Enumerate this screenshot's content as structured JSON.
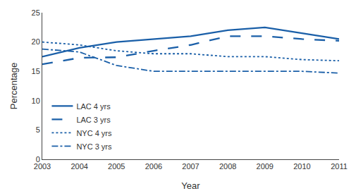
{
  "chart_data": {
    "type": "line",
    "xlabel": "Year",
    "ylabel": "Percentage",
    "x": [
      2003,
      2004,
      2005,
      2006,
      2007,
      2008,
      2009,
      2010,
      2011
    ],
    "series": [
      {
        "name": "LAC 4 yrs",
        "color": "#1a5fa8",
        "line_style": "solid",
        "values": [
          17.5,
          19.0,
          20.0,
          20.5,
          21.0,
          22.0,
          22.5,
          21.5,
          20.5
        ]
      },
      {
        "name": "LAC 3 yrs",
        "color": "#1a5fa8",
        "line_style": "longdash",
        "values": [
          16.2,
          17.3,
          17.4,
          18.5,
          19.5,
          21.0,
          21.0,
          20.5,
          20.2
        ]
      },
      {
        "name": "NYC 4 yrs",
        "color": "#1a5fa8",
        "line_style": "dotted",
        "values": [
          20.0,
          19.5,
          18.5,
          18.0,
          18.0,
          17.5,
          17.5,
          17.0,
          16.8
        ]
      },
      {
        "name": "NYC 3 yrs",
        "color": "#1a5fa8",
        "line_style": "dashdot",
        "values": [
          18.8,
          18.3,
          16.0,
          15.0,
          15.0,
          15.0,
          15.0,
          15.0,
          14.7
        ]
      }
    ],
    "xlim": [
      2003,
      2011
    ],
    "xticks": [
      2003,
      2004,
      2005,
      2006,
      2007,
      2008,
      2009,
      2010,
      2011
    ],
    "ylim": [
      0,
      25
    ],
    "yticks": [
      0,
      5,
      10,
      15,
      20,
      25
    ],
    "grid": false,
    "legend": "lower left"
  }
}
